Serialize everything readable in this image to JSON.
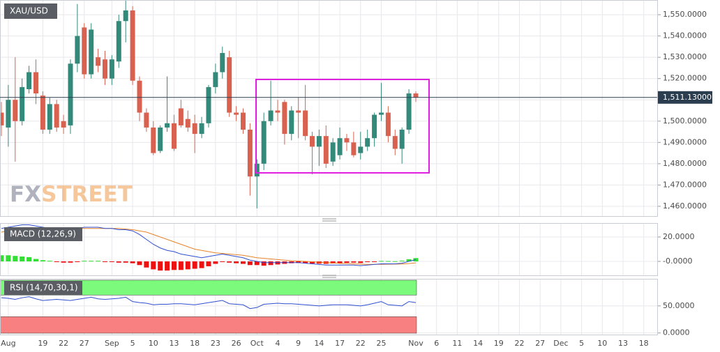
{
  "chart_data": [
    {
      "type": "candlestick",
      "title": "XAU/USD",
      "watermark": [
        "FX",
        "STREET"
      ],
      "x": [
        0,
        1,
        2,
        3,
        4,
        5,
        6,
        7,
        8,
        9,
        10,
        11,
        12,
        13,
        14,
        15,
        16,
        17,
        18,
        19,
        20,
        21,
        22,
        23,
        24,
        25,
        26,
        27,
        28,
        29,
        30,
        31,
        32,
        33,
        34,
        35,
        36,
        37,
        38,
        39,
        40,
        41,
        42,
        43,
        44,
        45,
        46,
        47,
        48,
        49,
        50,
        51,
        52,
        53,
        54,
        55,
        56,
        57,
        58,
        59,
        60
      ],
      "open": [
        1504,
        1497,
        1510,
        1500,
        1515,
        1523,
        1512,
        1496,
        1508,
        1500,
        1498,
        1527,
        1544,
        1522,
        1530,
        1529,
        1520,
        1528,
        1547,
        1552,
        1519,
        1504,
        1497,
        1486,
        1497,
        1499,
        1506,
        1501,
        1499,
        1494,
        1499,
        1516,
        1523,
        1530,
        1504,
        1504,
        1496,
        1474,
        1480,
        1500,
        1505,
        1509,
        1494,
        1505,
        1505,
        1493,
        1488,
        1493,
        1481,
        1484,
        1492,
        1490,
        1485,
        1488,
        1492,
        1503,
        1504,
        1493,
        1487,
        1496,
        1513
      ],
      "high": [
        1509,
        1517,
        1530,
        1520,
        1526,
        1529,
        1514,
        1511,
        1510,
        1503,
        1529,
        1555,
        1546,
        1546,
        1534,
        1533,
        1531,
        1550,
        1557,
        1554,
        1521,
        1506,
        1500,
        1498,
        1521,
        1503,
        1510,
        1505,
        1503,
        1502,
        1517,
        1527,
        1535,
        1533,
        1507,
        1506,
        1499,
        1482,
        1504,
        1519,
        1510,
        1510,
        1507,
        1511,
        1517,
        1495,
        1496,
        1498,
        1492,
        1497,
        1494,
        1495,
        1495,
        1496,
        1504,
        1518,
        1507,
        1496,
        1497,
        1515,
        1514
      ],
      "low": [
        1493,
        1488,
        1481,
        1498,
        1513,
        1508,
        1494,
        1494,
        1495,
        1494,
        1494,
        1523,
        1520,
        1520,
        1523,
        1517,
        1517,
        1525,
        1537,
        1517,
        1500,
        1495,
        1484,
        1485,
        1495,
        1486,
        1497,
        1495,
        1485,
        1492,
        1497,
        1513,
        1520,
        1502,
        1500,
        1494,
        1465,
        1459,
        1477,
        1498,
        1500,
        1489,
        1491,
        1492,
        1491,
        1475,
        1479,
        1478,
        1479,
        1482,
        1486,
        1483,
        1482,
        1486,
        1488,
        1500,
        1490,
        1484,
        1480,
        1494,
        1509
      ],
      "close": [
        1498,
        1510,
        1500,
        1516,
        1523,
        1513,
        1496,
        1508,
        1497,
        1497,
        1527,
        1540,
        1522,
        1543,
        1526,
        1520,
        1529,
        1547,
        1552,
        1519,
        1504,
        1497,
        1485,
        1497,
        1499,
        1487,
        1498,
        1497,
        1494,
        1499,
        1516,
        1523,
        1532,
        1504,
        1503,
        1496,
        1474,
        1480,
        1500,
        1505,
        1504,
        1494,
        1505,
        1504,
        1493,
        1488,
        1493,
        1480,
        1490,
        1492,
        1490,
        1484,
        1488,
        1492,
        1503,
        1504,
        1493,
        1487,
        1496,
        1513,
        1511.13
      ],
      "up_color": "#33897a",
      "down_color": "#d8624f",
      "grid": true,
      "last_price": {
        "value": 1511.13,
        "label": "1,511.13000"
      },
      "xlim": [
        -0.2,
        94.95
      ],
      "ylim": [
        1455.4,
        1556.9
      ],
      "yticks": [
        {
          "value": 1460,
          "label": "1,460.0000"
        },
        {
          "value": 1470,
          "label": "1,470.0000"
        },
        {
          "value": 1480,
          "label": "1,480.0000"
        },
        {
          "value": 1490,
          "label": "1,490.0000"
        },
        {
          "value": 1500,
          "label": "1,500.0000"
        },
        {
          "value": 1510,
          "label": "1,510.0000"
        },
        {
          "value": 1520,
          "label": "1,520.0000"
        },
        {
          "value": 1530,
          "label": "1,530.0000"
        },
        {
          "value": 1540,
          "label": "1,540.0000"
        },
        {
          "value": 1550,
          "label": "1,550.0000"
        }
      ],
      "xticks": [
        {
          "value": 1,
          "label": "Aug"
        },
        {
          "value": 6,
          "label": "19"
        },
        {
          "value": 9,
          "label": "22"
        },
        {
          "value": 12,
          "label": "27"
        },
        {
          "value": 16,
          "label": "Sep"
        },
        {
          "value": 19,
          "label": "5"
        },
        {
          "value": 22,
          "label": "10"
        },
        {
          "value": 25,
          "label": "13"
        },
        {
          "value": 28,
          "label": "18"
        },
        {
          "value": 31,
          "label": "23"
        },
        {
          "value": 34,
          "label": "26"
        },
        {
          "value": 37,
          "label": "Oct"
        },
        {
          "value": 40,
          "label": "4"
        },
        {
          "value": 43,
          "label": "9"
        },
        {
          "value": 46,
          "label": "14"
        },
        {
          "value": 49,
          "label": "17"
        },
        {
          "value": 52,
          "label": "22"
        },
        {
          "value": 55,
          "label": "25"
        },
        {
          "value": 60,
          "label": "Nov"
        },
        {
          "value": 63,
          "label": "6"
        },
        {
          "value": 66,
          "label": "11"
        },
        {
          "value": 69,
          "label": "14"
        },
        {
          "value": 72,
          "label": "19"
        },
        {
          "value": 75,
          "label": "22"
        },
        {
          "value": 78,
          "label": "27"
        },
        {
          "value": 81,
          "label": "Dec"
        },
        {
          "value": 84,
          "label": "5"
        },
        {
          "value": 87,
          "label": "10"
        },
        {
          "value": 90,
          "label": "13"
        },
        {
          "value": 93,
          "label": "18"
        }
      ]
    },
    {
      "type": "macd",
      "title": "MACD (12,26,9)",
      "macd": [
        27,
        28,
        29,
        30,
        30,
        29,
        28,
        27,
        26,
        26,
        26,
        27,
        28,
        28,
        28,
        27,
        27,
        26,
        26,
        25,
        22,
        18,
        14,
        11,
        9,
        8,
        6,
        5,
        4,
        3,
        4,
        5,
        6,
        5,
        4,
        3,
        1,
        0,
        -1,
        -1,
        -1,
        -1,
        -1,
        -1,
        -1.5,
        -2,
        -2.5,
        -3,
        -3,
        -3,
        -3,
        -3,
        -3.5,
        -3,
        -2.5,
        -2,
        -2,
        -2,
        -1.5,
        0,
        1.5
      ],
      "signal": [
        24,
        25,
        25.5,
        26,
        26.5,
        27,
        27,
        27,
        27,
        27,
        27,
        27,
        27,
        27,
        27,
        27,
        27,
        27,
        26.5,
        26,
        25,
        24,
        22,
        20,
        18,
        16,
        14,
        12,
        10,
        9,
        8,
        7,
        6.5,
        6,
        5.5,
        5,
        4,
        3,
        2.5,
        2,
        1.5,
        1,
        0.5,
        0.3,
        0,
        -0.3,
        -0.7,
        -1,
        -1.3,
        -1.6,
        -1.8,
        -2,
        -2.2,
        -2.4,
        -2.4,
        -2.4,
        -2.3,
        -2.2,
        -2.1,
        -1.8,
        -1.2
      ],
      "histogram": [
        5,
        5,
        4.5,
        4,
        3.5,
        2,
        1,
        0.5,
        -0.5,
        -1,
        -1,
        -0.5,
        0.5,
        0.5,
        0.5,
        -0.5,
        -0.5,
        -1,
        -1,
        -1.5,
        -3,
        -5,
        -6.5,
        -7.5,
        -7.5,
        -7,
        -7,
        -6.5,
        -6,
        -5.5,
        -4,
        -2,
        -0.5,
        -1,
        -1.5,
        -2,
        -3,
        -3,
        -3.5,
        -3,
        -2.5,
        -2,
        -1.5,
        -1.3,
        -1.5,
        -1.7,
        -1.8,
        -2,
        -1.7,
        -1.4,
        -1.2,
        -1,
        -1.3,
        -0.6,
        -0.1,
        0.4,
        0.3,
        0.2,
        0.6,
        1.8,
        2.7
      ],
      "macd_color": "#2f4fd0",
      "signal_color": "#e8832a",
      "pos_color": "#33dd33",
      "neg_color": "#ee1111",
      "ylim": [
        -11.4,
        31.4
      ],
      "yticks": [
        {
          "value": 0,
          "label": "-0.0000"
        },
        {
          "value": 20,
          "label": "20.0000"
        }
      ]
    },
    {
      "type": "rsi",
      "title": "RSI (14,70,30,1)",
      "values": [
        65,
        64,
        62,
        65,
        67,
        63,
        60,
        61,
        62,
        61,
        60,
        62,
        64,
        66,
        63,
        62,
        63,
        64,
        66,
        58,
        56,
        55,
        52,
        53,
        53,
        54,
        54,
        53,
        52,
        54,
        56,
        58,
        60,
        54,
        53,
        52,
        45,
        47,
        53,
        54,
        55,
        54,
        54,
        53,
        52,
        51,
        50,
        51,
        52,
        52,
        52,
        51,
        50,
        52,
        55,
        58,
        52,
        51,
        50,
        58,
        56
      ],
      "line_color": "#2f4fd0",
      "overbought": 70,
      "oversold": 30,
      "ob_color": "#7bfa7b",
      "os_color": "#f98080",
      "ylim": [
        -3,
        100
      ],
      "yticks": [
        {
          "value": 0,
          "label": "0.0000"
        },
        {
          "value": 50,
          "label": "50.0000"
        }
      ]
    }
  ]
}
